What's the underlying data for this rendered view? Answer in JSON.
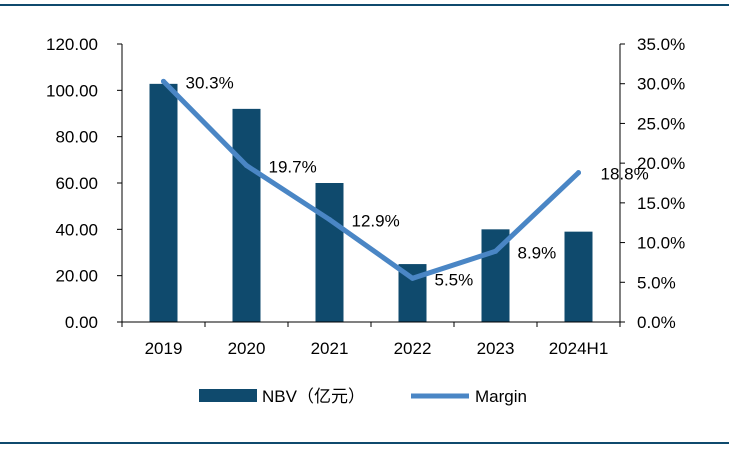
{
  "colors": {
    "bar": "#0f4a6d",
    "line": "#4a86c5",
    "rule": "#0f4a6d",
    "axis": "#000000"
  },
  "chart_data": {
    "type": "bar",
    "title": "",
    "xlabel": "",
    "ylabel": "",
    "categories": [
      "2019",
      "2020",
      "2021",
      "2022",
      "2023",
      "2024H1"
    ],
    "series": [
      {
        "name": "NBV（亿元）",
        "type": "bar",
        "axis": "left",
        "values": [
          102.8,
          92.0,
          60.0,
          25.0,
          40.0,
          39.0
        ]
      },
      {
        "name": "Margin",
        "type": "line",
        "axis": "right",
        "values": [
          30.3,
          19.7,
          12.9,
          5.5,
          8.9,
          18.8
        ],
        "labels": [
          "30.3%",
          "19.7%",
          "12.9%",
          "5.5%",
          "8.9%",
          "18.8%"
        ]
      }
    ],
    "left_axis": {
      "min": 0,
      "max": 120,
      "ticks": [
        "0.00",
        "20.00",
        "40.00",
        "60.00",
        "80.00",
        "100.00",
        "120.00"
      ]
    },
    "right_axis": {
      "min": 0,
      "max": 35,
      "ticks": [
        "0.0%",
        "5.0%",
        "10.0%",
        "15.0%",
        "20.0%",
        "25.0%",
        "30.0%",
        "35.0%"
      ]
    },
    "grid": false,
    "legend_position": "bottom"
  }
}
